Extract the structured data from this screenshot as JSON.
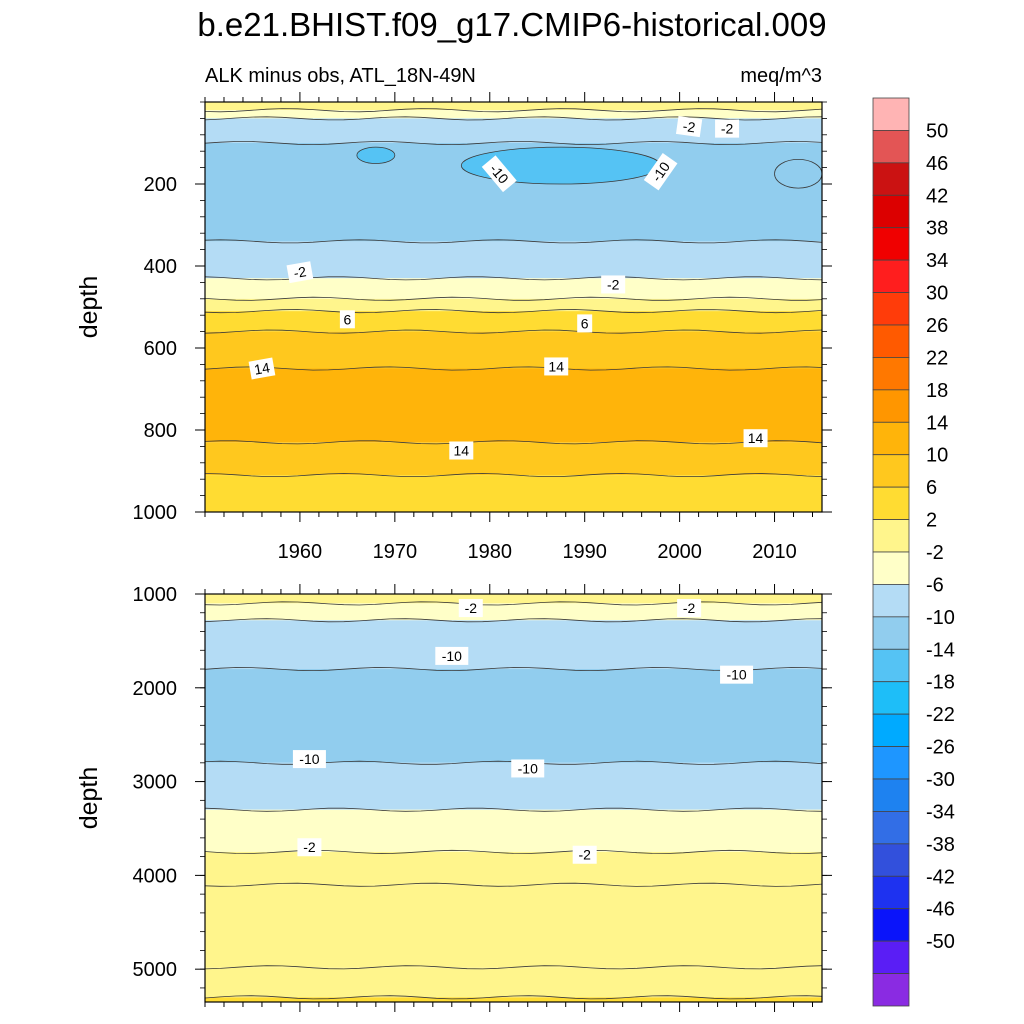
{
  "figure": {
    "title": "b.e21.BHIST.f09_g17.CMIP6-historical.009",
    "subtitle_left": "ALK minus obs, ATL_18N-49N",
    "subtitle_right": "meq/m^3"
  },
  "colorbar": {
    "levels": [
      50,
      46,
      42,
      38,
      34,
      30,
      26,
      22,
      18,
      14,
      10,
      6,
      2,
      -2,
      -6,
      -10,
      -14,
      -18,
      -22,
      -26,
      -30,
      -34,
      -38,
      -42,
      -46,
      -50
    ],
    "labels": [
      "50",
      "46",
      "42",
      "38",
      "34",
      "30",
      "26",
      "22",
      "18",
      "14",
      "10",
      "6",
      "2",
      "-2",
      "-6",
      "-10",
      "-14",
      "-18",
      "-22",
      "-26",
      "-30",
      "-34",
      "-38",
      "-42",
      "-46",
      "-50"
    ],
    "colors": [
      "#ffb4b4",
      "#e35555",
      "#cb1212",
      "#dc0000",
      "#f00000",
      "#ff1e1e",
      "#ff3c0a",
      "#ff5a00",
      "#ff7800",
      "#ff9600",
      "#ffb40a",
      "#ffc81e",
      "#ffdc32",
      "#fff58c",
      "#ffffc8",
      "#b4dcf5",
      "#91cdee",
      "#55c3f4",
      "#1ebef8",
      "#00aaff",
      "#1e96ff",
      "#1e82f0",
      "#326ee6",
      "#3250dc",
      "#1e32f0",
      "#0a14fa",
      "#5a1ef5",
      "#8a2be2"
    ]
  },
  "chart_data": [
    {
      "type": "heatmap",
      "name": "upper-panel",
      "xlabel": "",
      "ylabel": "depth",
      "xlim": [
        1950,
        2015
      ],
      "ylim": [
        1000,
        0
      ],
      "x_ticks": [
        1960,
        1970,
        1980,
        1990,
        2000,
        2010
      ],
      "x_tick_labels": [
        "1960",
        "1970",
        "1980",
        "1990",
        "2000",
        "2010"
      ],
      "y_ticks": [
        200,
        400,
        600,
        800,
        1000
      ],
      "y_tick_labels": [
        "200",
        "400",
        "600",
        "800",
        "1000"
      ],
      "bands": [
        {
          "top": 0,
          "bottom": 20,
          "value": 2
        },
        {
          "top": 20,
          "bottom": 40,
          "value": -2
        },
        {
          "top": 40,
          "bottom": 100,
          "value": -6
        },
        {
          "top": 100,
          "bottom": 340,
          "value": -10
        },
        {
          "top": 340,
          "bottom": 430,
          "value": -6
        },
        {
          "top": 430,
          "bottom": 480,
          "value": -2
        },
        {
          "top": 480,
          "bottom": 510,
          "value": 2
        },
        {
          "top": 510,
          "bottom": 560,
          "value": 6
        },
        {
          "top": 560,
          "bottom": 650,
          "value": 10
        },
        {
          "top": 650,
          "bottom": 830,
          "value": 14
        },
        {
          "top": 830,
          "bottom": 910,
          "value": 10
        },
        {
          "top": 910,
          "bottom": 1000,
          "value": 6
        }
      ],
      "cores": [
        {
          "x": [
            1966,
            1970
          ],
          "depth": [
            110,
            150
          ],
          "value": -14
        },
        {
          "x": [
            1977,
            1998
          ],
          "depth": [
            110,
            200
          ],
          "value": -14
        },
        {
          "x": [
            2010,
            2015
          ],
          "depth": [
            140,
            210
          ],
          "value": -10
        }
      ],
      "contour_labels": [
        {
          "x": 2001,
          "depth": 60,
          "text": "-2",
          "rot": 8
        },
        {
          "x": 2005,
          "depth": 65,
          "text": "-2",
          "rot": 0
        },
        {
          "x": 1981,
          "depth": 175,
          "text": "-10",
          "rot": 50
        },
        {
          "x": 1998,
          "depth": 170,
          "text": "-10",
          "rot": -55
        },
        {
          "x": 1960,
          "depth": 415,
          "text": "-2",
          "rot": -10
        },
        {
          "x": 1993,
          "depth": 445,
          "text": "-2",
          "rot": 0
        },
        {
          "x": 1965,
          "depth": 530,
          "text": "6",
          "rot": 0
        },
        {
          "x": 1990,
          "depth": 540,
          "text": "6",
          "rot": 0
        },
        {
          "x": 1956,
          "depth": 650,
          "text": "14",
          "rot": -10
        },
        {
          "x": 1987,
          "depth": 645,
          "text": "14",
          "rot": 0
        },
        {
          "x": 1977,
          "depth": 850,
          "text": "14",
          "rot": 0
        },
        {
          "x": 2008,
          "depth": 820,
          "text": "14",
          "rot": 0
        }
      ]
    },
    {
      "type": "heatmap",
      "name": "lower-panel",
      "xlabel": "",
      "ylabel": "depth",
      "xlim": [
        1950,
        2015
      ],
      "ylim": [
        5350,
        1000
      ],
      "x_ticks": [
        1960,
        1970,
        1980,
        1990,
        2000,
        2010
      ],
      "y_ticks": [
        1000,
        2000,
        3000,
        4000,
        5000
      ],
      "y_tick_labels": [
        "1000",
        "2000",
        "3000",
        "4000",
        "5000"
      ],
      "bands": [
        {
          "top": 1000,
          "bottom": 1100,
          "value": 2
        },
        {
          "top": 1100,
          "bottom": 1280,
          "value": -2
        },
        {
          "top": 1280,
          "bottom": 1800,
          "value": -6
        },
        {
          "top": 1800,
          "bottom": 2800,
          "value": -10
        },
        {
          "top": 2800,
          "bottom": 3300,
          "value": -6
        },
        {
          "top": 3300,
          "bottom": 3750,
          "value": -2
        },
        {
          "top": 3750,
          "bottom": 4100,
          "value": 2
        },
        {
          "top": 4100,
          "bottom": 4980,
          "value": 2
        },
        {
          "top": 4980,
          "bottom": 5300,
          "value": 2
        },
        {
          "top": 5300,
          "bottom": 5350,
          "value": 6
        }
      ],
      "contour_labels": [
        {
          "x": 1978,
          "depth": 1150,
          "text": "-2",
          "rot": 0
        },
        {
          "x": 2001,
          "depth": 1150,
          "text": "-2",
          "rot": 0
        },
        {
          "x": 1976,
          "depth": 1660,
          "text": "-10",
          "rot": 0
        },
        {
          "x": 2006,
          "depth": 1860,
          "text": "-10",
          "rot": 0
        },
        {
          "x": 1961,
          "depth": 2760,
          "text": "-10",
          "rot": 0
        },
        {
          "x": 1984,
          "depth": 2860,
          "text": "-10",
          "rot": 0
        },
        {
          "x": 1961,
          "depth": 3700,
          "text": "-2",
          "rot": 0
        },
        {
          "x": 1990,
          "depth": 3780,
          "text": "-2",
          "rot": 0
        }
      ]
    }
  ]
}
